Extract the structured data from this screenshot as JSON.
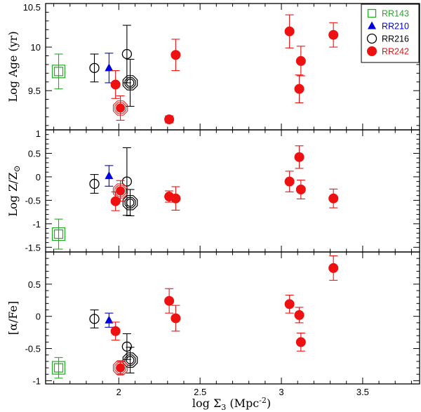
{
  "chart_data": {
    "type": "scatter",
    "xlabel": "log Σ3 (Mpc-2)",
    "xlabel_parts": {
      "pre": "log Σ",
      "sub": "3",
      "post": " (Mpc",
      "sup": "-2",
      "end": ")"
    },
    "xlim": [
      1.55,
      3.85
    ],
    "xticks": [
      2,
      2.5,
      3,
      3.5
    ],
    "xtick_labels": [
      "2",
      "2.5",
      "3",
      "3.5"
    ],
    "legend": [
      {
        "name": "RR143",
        "color": "#22aa22",
        "marker": "open-square"
      },
      {
        "name": "RR210",
        "color": "#0000dd",
        "marker": "filled-triangle"
      },
      {
        "name": "RR216",
        "color": "#000000",
        "marker": "open-circle"
      },
      {
        "name": "RR242",
        "color": "#ee1111",
        "marker": "filled-circle"
      }
    ],
    "panels": [
      {
        "id": "age",
        "ylabel": "Log Age (yr)",
        "ylim": [
          9.05,
          10.5
        ],
        "yticks": [
          9.5,
          10,
          10.5
        ],
        "ytick_labels": [
          "9.5",
          "10",
          "10.5"
        ],
        "series": [
          {
            "name": "RR143",
            "points": [
              {
                "x": 1.63,
                "y": 9.72,
                "err": 0.2,
                "marker": "open-square-big"
              }
            ]
          },
          {
            "name": "RR210",
            "points": [
              {
                "x": 1.94,
                "y": 9.76,
                "err": 0.17,
                "marker": "filled-triangle"
              }
            ]
          },
          {
            "name": "RR216",
            "points": [
              {
                "x": 1.85,
                "y": 9.76,
                "err": 0.16,
                "marker": "open-circle"
              },
              {
                "x": 2.05,
                "y": 9.92,
                "err": 0.33,
                "marker": "open-circle"
              },
              {
                "x": 2.07,
                "y": 9.59,
                "err": 0.27,
                "marker": "open-octagon-big"
              }
            ]
          },
          {
            "name": "RR242",
            "points": [
              {
                "x": 1.98,
                "y": 9.57,
                "err": 0.16,
                "marker": "filled-circle"
              },
              {
                "x": 2.01,
                "y": 9.3,
                "err": 0.14,
                "marker": "filled-circle-ringed"
              },
              {
                "x": 2.31,
                "y": 9.17,
                "err": 0.04,
                "marker": "filled-circle"
              },
              {
                "x": 2.35,
                "y": 9.91,
                "err": 0.18,
                "marker": "filled-circle"
              },
              {
                "x": 3.05,
                "y": 10.18,
                "err": 0.19,
                "marker": "filled-circle"
              },
              {
                "x": 3.11,
                "y": 9.52,
                "err": 0.16,
                "marker": "filled-circle"
              },
              {
                "x": 3.12,
                "y": 9.84,
                "err": 0.17,
                "marker": "filled-circle"
              },
              {
                "x": 3.32,
                "y": 10.14,
                "err": 0.14,
                "marker": "filled-circle"
              }
            ]
          }
        ]
      },
      {
        "id": "metallicity",
        "ylabel": "Log Z/Z",
        "ylabel_sub": "⊙",
        "ylim": [
          -1.6,
          1.0
        ],
        "yticks": [
          -1.5,
          -1,
          -0.5,
          0,
          0.5,
          1
        ],
        "ytick_labels": [
          "-1.5",
          "-1",
          "-0.5",
          "0",
          "0.5",
          "1"
        ],
        "series": [
          {
            "name": "RR143",
            "points": [
              {
                "x": 1.63,
                "y": -1.22,
                "err": 0.32,
                "marker": "open-square-big"
              }
            ]
          },
          {
            "name": "RR210",
            "points": [
              {
                "x": 1.94,
                "y": 0.02,
                "err": 0.22,
                "marker": "filled-triangle"
              }
            ]
          },
          {
            "name": "RR216",
            "points": [
              {
                "x": 1.85,
                "y": -0.15,
                "err": 0.2,
                "marker": "open-circle"
              },
              {
                "x": 2.05,
                "y": -0.1,
                "err": 0.72,
                "marker": "open-circle"
              },
              {
                "x": 2.07,
                "y": -0.55,
                "err": 0.28,
                "marker": "open-octagon-big"
              }
            ]
          },
          {
            "name": "RR242",
            "points": [
              {
                "x": 1.98,
                "y": -0.52,
                "err": 0.2,
                "marker": "filled-circle"
              },
              {
                "x": 2.01,
                "y": -0.3,
                "err": 0.22,
                "marker": "filled-circle-ringed"
              },
              {
                "x": 2.31,
                "y": -0.42,
                "err": 0.12,
                "marker": "filled-circle"
              },
              {
                "x": 2.35,
                "y": -0.46,
                "err": 0.25,
                "marker": "filled-circle"
              },
              {
                "x": 3.05,
                "y": -0.1,
                "err": 0.22,
                "marker": "filled-circle"
              },
              {
                "x": 3.11,
                "y": 0.42,
                "err": 0.24,
                "marker": "filled-circle"
              },
              {
                "x": 3.12,
                "y": -0.27,
                "err": 0.2,
                "marker": "filled-circle"
              },
              {
                "x": 3.32,
                "y": -0.46,
                "err": 0.2,
                "marker": "filled-circle"
              }
            ]
          }
        ]
      },
      {
        "id": "alpha",
        "ylabel": "[α/Fe]",
        "ylim": [
          -1.05,
          1.0
        ],
        "yticks": [
          -1,
          -0.5,
          0,
          0.5
        ],
        "ytick_labels": [
          "-1",
          "-0.5",
          "0",
          "0.5"
        ],
        "series": [
          {
            "name": "RR143",
            "points": [
              {
                "x": 1.63,
                "y": -0.8,
                "err": 0.16,
                "marker": "open-square-big"
              }
            ]
          },
          {
            "name": "RR210",
            "points": [
              {
                "x": 1.94,
                "y": -0.06,
                "err": 0.11,
                "marker": "filled-triangle"
              }
            ]
          },
          {
            "name": "RR216",
            "points": [
              {
                "x": 1.85,
                "y": -0.04,
                "err": 0.14,
                "marker": "open-circle"
              },
              {
                "x": 2.05,
                "y": -0.47,
                "err": 0.2,
                "marker": "open-circle"
              },
              {
                "x": 2.07,
                "y": -0.68,
                "err": 0.2,
                "marker": "open-octagon-big"
              }
            ]
          },
          {
            "name": "RR242",
            "points": [
              {
                "x": 1.98,
                "y": -0.23,
                "err": 0.14,
                "marker": "filled-circle"
              },
              {
                "x": 2.01,
                "y": -0.8,
                "err": 0.1,
                "marker": "filled-circle-ringed"
              },
              {
                "x": 2.31,
                "y": 0.24,
                "err": 0.19,
                "marker": "filled-circle"
              },
              {
                "x": 2.35,
                "y": -0.03,
                "err": 0.2,
                "marker": "filled-circle"
              },
              {
                "x": 3.05,
                "y": 0.19,
                "err": 0.14,
                "marker": "filled-circle"
              },
              {
                "x": 3.11,
                "y": 0.02,
                "err": 0.12,
                "marker": "filled-circle"
              },
              {
                "x": 3.12,
                "y": -0.4,
                "err": 0.14,
                "marker": "filled-circle"
              },
              {
                "x": 3.32,
                "y": 0.75,
                "err": 0.19,
                "marker": "filled-circle"
              }
            ]
          }
        ]
      }
    ]
  }
}
